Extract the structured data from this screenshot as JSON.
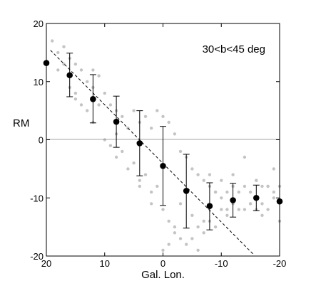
{
  "chart_data": {
    "type": "scatter",
    "title": "",
    "xlabel": "Gal. Lon.",
    "ylabel": "RM",
    "annotation": "30<b<45 deg",
    "xlim": [
      20,
      -20
    ],
    "ylim": [
      -20,
      20
    ],
    "x_reversed": true,
    "x_ticks": [
      20,
      10,
      0,
      -10,
      -20
    ],
    "y_ticks": [
      20,
      10,
      0,
      -10,
      -20
    ],
    "grid": false,
    "colors": {
      "points": "#c4c4c4",
      "means": "#000000",
      "fit": "#000000",
      "zero_line": "#888888"
    },
    "binned_means": {
      "x": [
        20,
        16,
        12,
        8,
        4,
        0,
        -4,
        -8,
        -12,
        -16,
        -20
      ],
      "y": [
        13.2,
        11.1,
        7.0,
        3.1,
        -0.6,
        -4.5,
        -8.8,
        -11.4,
        -10.4,
        -10.0,
        -10.6
      ],
      "err_low": [
        13.2,
        7.4,
        2.9,
        -1.3,
        -6.2,
        -11.3,
        -15.2,
        -15.5,
        -13.3,
        -12.2,
        -10.6
      ],
      "err_high": [
        13.2,
        14.9,
        11.2,
        7.5,
        5.0,
        2.3,
        -2.5,
        -7.4,
        -7.5,
        -7.8,
        -10.6
      ]
    },
    "fit_line": {
      "style": "dashed",
      "x": [
        19.3,
        -15.5
      ],
      "y": [
        15.4,
        -19.7
      ]
    },
    "scatter": {
      "x": [
        19,
        18,
        18,
        17,
        17,
        16,
        16,
        15,
        15,
        14,
        14,
        13,
        13,
        12,
        12,
        11,
        11,
        10,
        10,
        9,
        9,
        8,
        8,
        7,
        7,
        6,
        6,
        5,
        5,
        4,
        4,
        3,
        3,
        2,
        2,
        1,
        1,
        0,
        0,
        -1,
        -1,
        -2,
        -2,
        -3,
        -3,
        -4,
        -4,
        -5,
        -5,
        -6,
        -6,
        -7,
        -7,
        -8,
        -8,
        -9,
        -9,
        -10,
        -10,
        -11,
        -11,
        -12,
        -12,
        -13,
        -13,
        -14,
        -14,
        -15,
        -15,
        -16,
        -16,
        -17,
        -17,
        -18,
        -18,
        -19,
        -19,
        -20,
        -20,
        15,
        12,
        8,
        4,
        2,
        0,
        -1,
        -2,
        -3,
        -5,
        -6,
        -7,
        -8,
        -9,
        -10,
        -11,
        -12,
        -14,
        -15,
        -16,
        -17,
        -18,
        -19
      ],
      "y": [
        17,
        15,
        12,
        16,
        13,
        14,
        9,
        13,
        8,
        12,
        6,
        10,
        5,
        9,
        3,
        11,
        6,
        8,
        0,
        6,
        -1,
        5,
        1,
        4,
        -2,
        2,
        -5,
        5,
        -4,
        3,
        -7,
        4,
        -6,
        2,
        -9,
        5,
        -8,
        4,
        -12,
        3,
        -14,
        1,
        -16,
        -2,
        -17,
        -3,
        -18,
        -5,
        -17,
        -6,
        -15,
        -7,
        -16,
        -8,
        -14,
        -9,
        -15,
        -10,
        -12,
        -9,
        -13,
        -8,
        -11,
        -9,
        -12,
        -8,
        -12,
        -9,
        -11,
        -7,
        -12,
        -8,
        -11,
        -8,
        -12,
        -9,
        -10,
        -8,
        -14,
        7,
        12,
        -3,
        -8,
        -11,
        -19,
        -18,
        -15,
        -11,
        -13,
        -19,
        -14,
        -6,
        -9,
        -7,
        -12,
        -6,
        -3,
        -11,
        -7,
        -13,
        -8,
        -5
      ]
    }
  }
}
